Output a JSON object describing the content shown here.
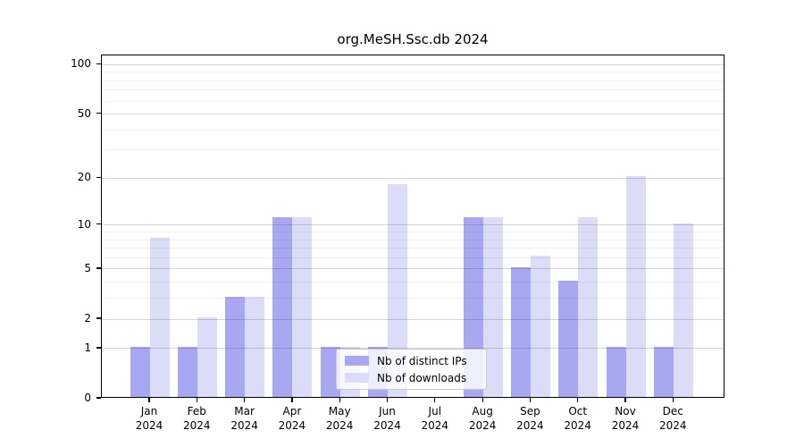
{
  "chart_data": {
    "type": "bar",
    "title": "org.MeSH.Ssc.db 2024",
    "categories": [
      "Jan 2024",
      "Feb 2024",
      "Mar 2024",
      "Apr 2024",
      "May 2024",
      "Jun 2024",
      "Jul 2024",
      "Aug 2024",
      "Sep 2024",
      "Oct 2024",
      "Nov 2024",
      "Dec 2024"
    ],
    "series": [
      {
        "name": "Nb of distinct IPs",
        "color": "#a8a8f2",
        "values": [
          1,
          1,
          3,
          11,
          1,
          1,
          0,
          11,
          5,
          4,
          1,
          1
        ]
      },
      {
        "name": "Nb of downloads",
        "color": "#dcdcf9",
        "values": [
          8,
          2,
          3,
          11,
          1,
          18,
          0,
          11,
          6,
          11,
          20,
          10
        ]
      }
    ],
    "yscale": "log1p",
    "ylim": [
      0,
      100
    ],
    "yticks_major": [
      0,
      1,
      2,
      5,
      10,
      20,
      50,
      100
    ],
    "yticks_minor": [
      3,
      4,
      6,
      7,
      8,
      9,
      30,
      40,
      60,
      70,
      80,
      90
    ],
    "grid": "on",
    "legend_position": "lower-center-inside"
  }
}
